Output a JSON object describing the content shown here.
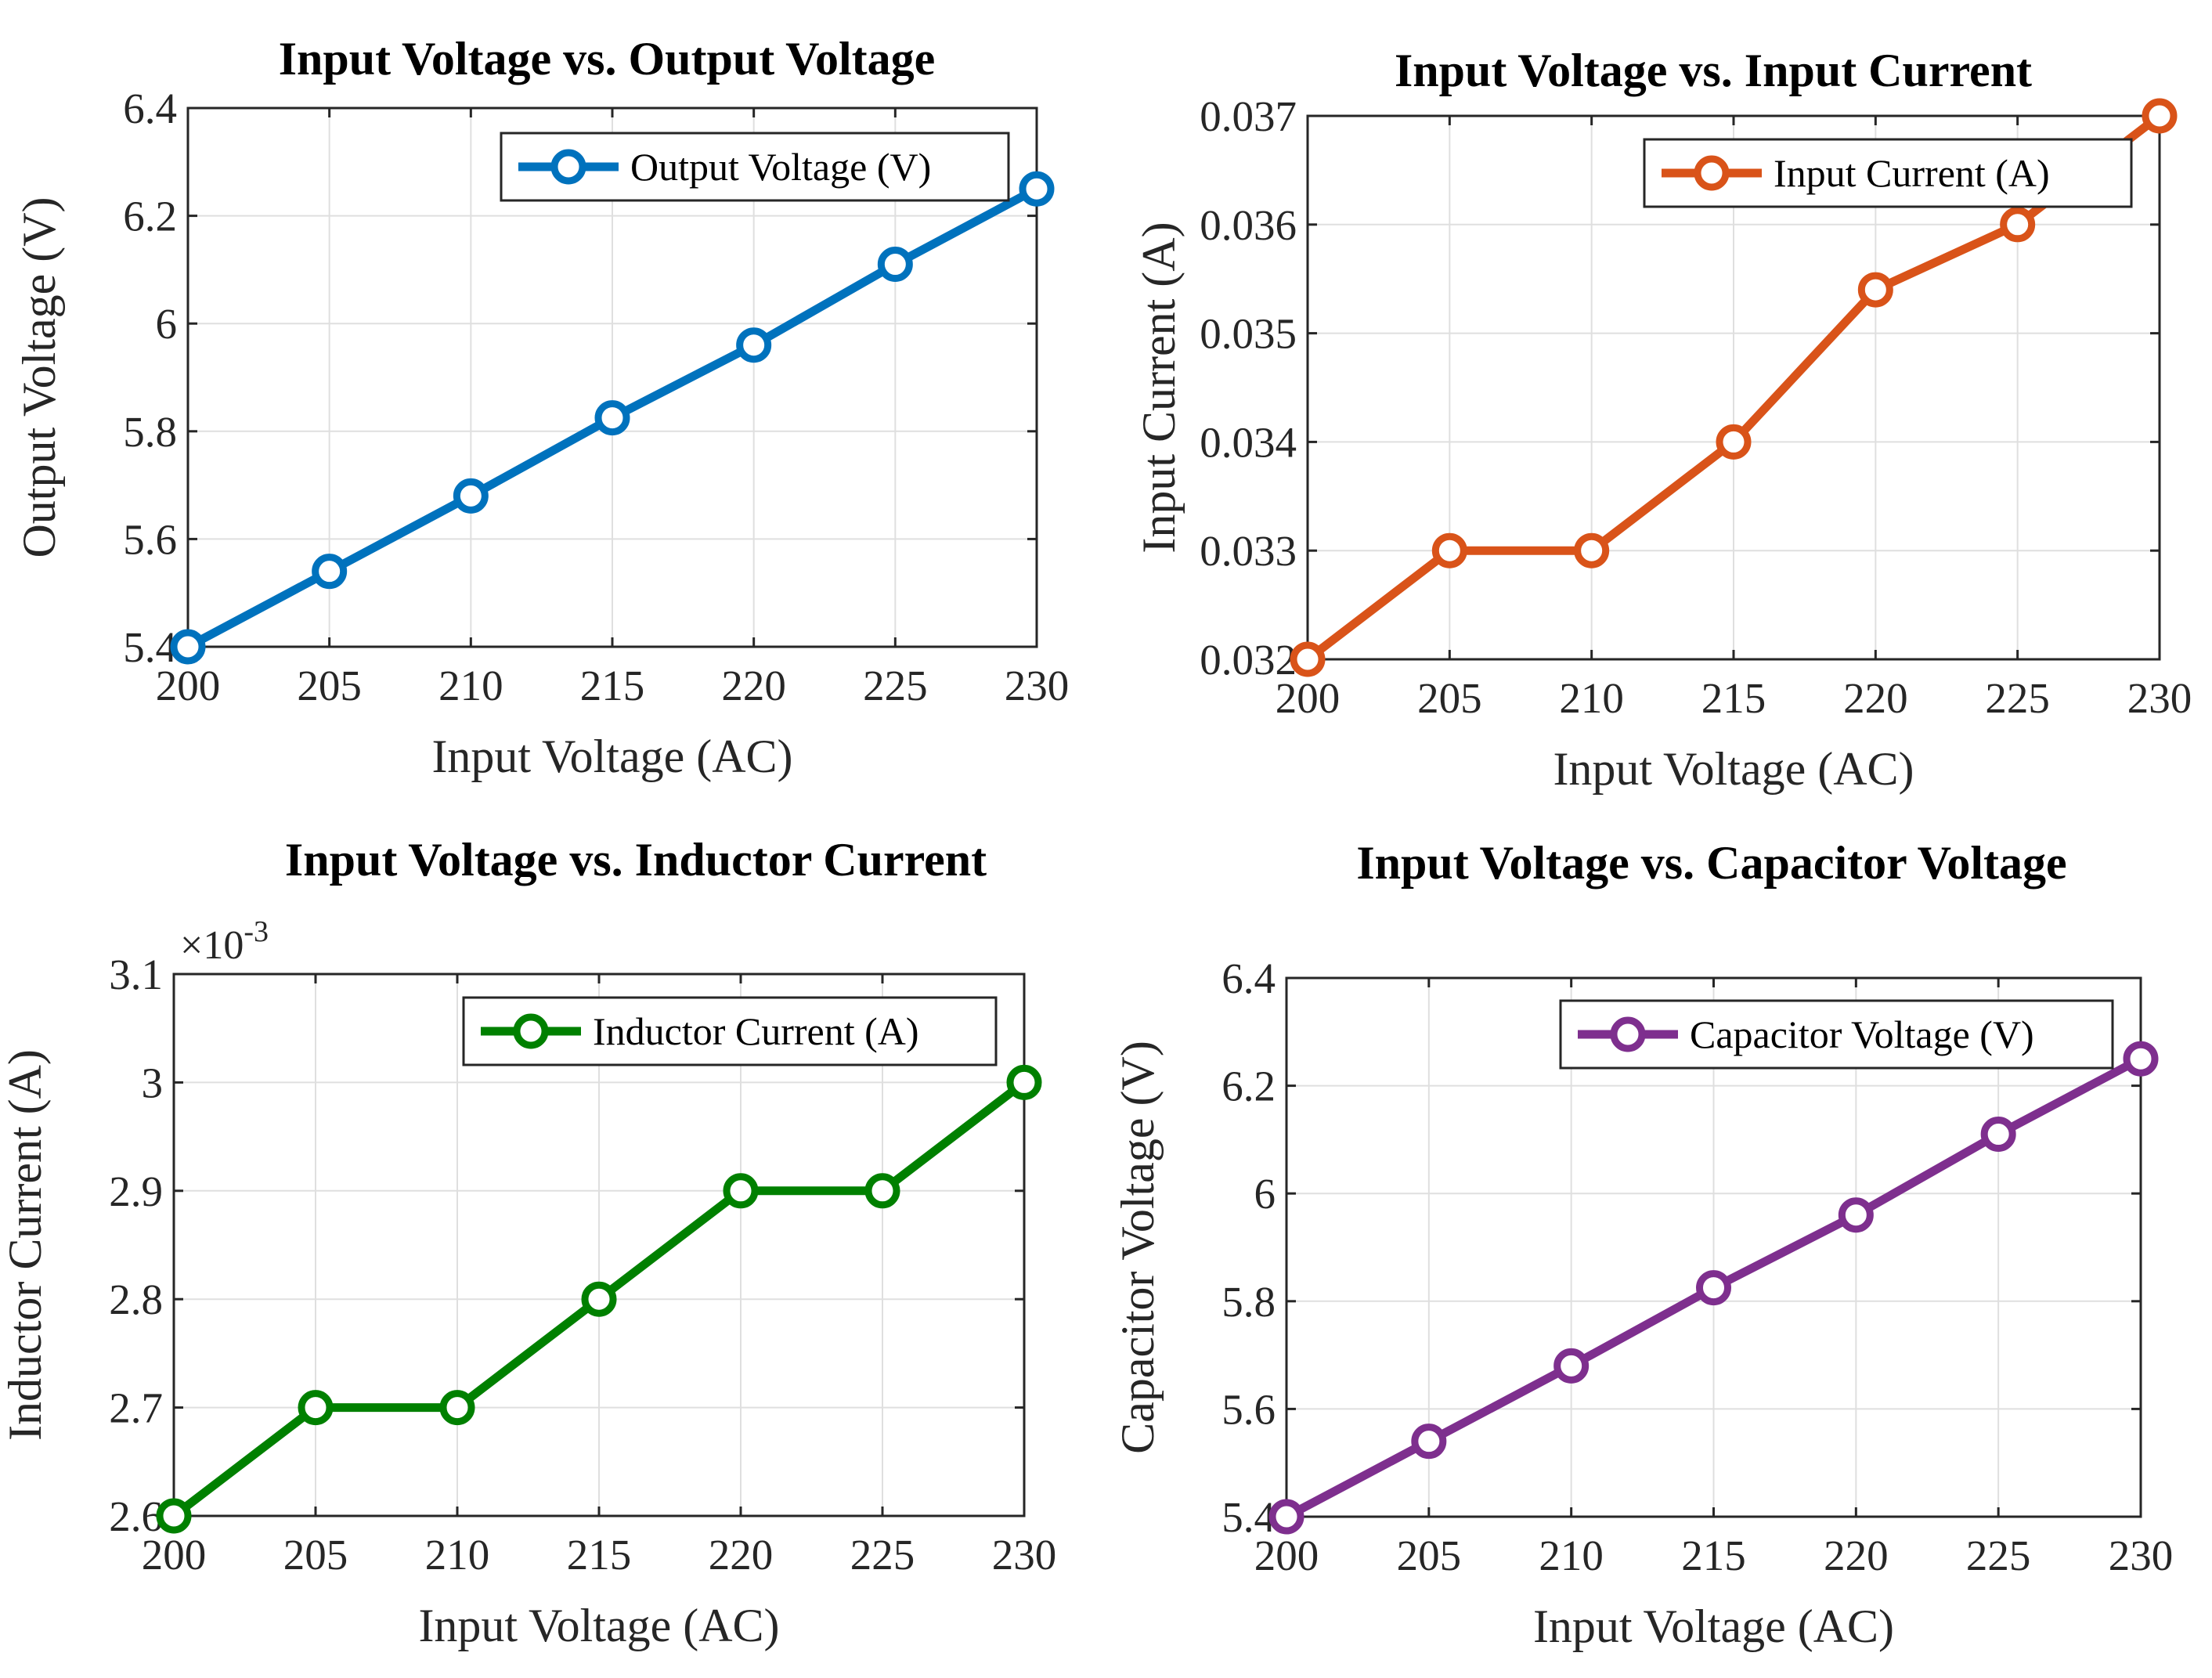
{
  "chart_data": [
    {
      "type": "line",
      "title": "Input Voltage vs. Output Voltage",
      "xlabel": "Input Voltage (AC)",
      "ylabel": "Output Voltage (V)",
      "x": [
        200,
        205,
        210,
        215,
        220,
        225,
        230
      ],
      "series": [
        {
          "name": "Output Voltage (V)",
          "values": [
            5.4,
            5.54,
            5.68,
            5.825,
            5.96,
            6.11,
            6.25
          ],
          "color": "#0072BD"
        }
      ],
      "xlim": [
        200,
        230
      ],
      "ylim": [
        5.4,
        6.4
      ],
      "xticks": [
        200,
        205,
        210,
        215,
        220,
        225,
        230
      ],
      "xtick_labels": [
        "200",
        "205",
        "210",
        "215",
        "220",
        "225",
        "230"
      ],
      "yticks": [
        5.4,
        5.6,
        5.8,
        6,
        6.2,
        6.4
      ],
      "ytick_labels": [
        "5.4",
        "5.6",
        "5.8",
        "6",
        "6.2",
        "6.4"
      ],
      "exponent_label": "",
      "grid": true,
      "legend_position": "top-right"
    },
    {
      "type": "line",
      "title": "Input Voltage vs. Input Current",
      "xlabel": "Input Voltage (AC)",
      "ylabel": "Input Current (A)",
      "x": [
        200,
        205,
        210,
        215,
        220,
        225,
        230
      ],
      "series": [
        {
          "name": "Input Current (A)",
          "values": [
            0.032,
            0.033,
            0.033,
            0.034,
            0.0354,
            0.036,
            0.037
          ],
          "color": "#D95319"
        }
      ],
      "xlim": [
        200,
        230
      ],
      "ylim": [
        0.032,
        0.037
      ],
      "xticks": [
        200,
        205,
        210,
        215,
        220,
        225,
        230
      ],
      "xtick_labels": [
        "200",
        "205",
        "210",
        "215",
        "220",
        "225",
        "230"
      ],
      "yticks": [
        0.032,
        0.033,
        0.034,
        0.035,
        0.036,
        0.037
      ],
      "ytick_labels": [
        "0.032",
        "0.033",
        "0.034",
        "0.035",
        "0.036",
        "0.037"
      ],
      "exponent_label": "",
      "grid": true,
      "legend_position": "top-right"
    },
    {
      "type": "line",
      "title": "Input Voltage vs. Inductor Current",
      "xlabel": "Input Voltage (AC)",
      "ylabel": "Inductor Current (A)",
      "x": [
        200,
        205,
        210,
        215,
        220,
        225,
        230
      ],
      "series": [
        {
          "name": "Inductor Current (A)",
          "values": [
            0.0026,
            0.0027,
            0.0027,
            0.0028,
            0.0029,
            0.0029,
            0.003
          ],
          "color": "#008000"
        }
      ],
      "xlim": [
        200,
        230
      ],
      "ylim": [
        0.0026,
        0.0031
      ],
      "xticks": [
        200,
        205,
        210,
        215,
        220,
        225,
        230
      ],
      "xtick_labels": [
        "200",
        "205",
        "210",
        "215",
        "220",
        "225",
        "230"
      ],
      "yticks": [
        0.0026,
        0.0027,
        0.0028,
        0.0029,
        0.003,
        0.0031
      ],
      "ytick_labels": [
        "2.6",
        "2.7",
        "2.8",
        "2.9",
        "3",
        "3.1"
      ],
      "exponent_label": "×10",
      "exponent_power": "-3",
      "grid": true,
      "legend_position": "top-right"
    },
    {
      "type": "line",
      "title": "Input Voltage vs. Capacitor Voltage",
      "xlabel": "Input Voltage (AC)",
      "ylabel": "Capacitor Voltage (V)",
      "x": [
        200,
        205,
        210,
        215,
        220,
        225,
        230
      ],
      "series": [
        {
          "name": "Capacitor Voltage (V)",
          "values": [
            5.4,
            5.54,
            5.68,
            5.825,
            5.96,
            6.11,
            6.25
          ],
          "color": "#7E2F8E"
        }
      ],
      "xlim": [
        200,
        230
      ],
      "ylim": [
        5.4,
        6.4
      ],
      "xticks": [
        200,
        205,
        210,
        215,
        220,
        225,
        230
      ],
      "xtick_labels": [
        "200",
        "205",
        "210",
        "215",
        "220",
        "225",
        "230"
      ],
      "yticks": [
        5.4,
        5.6,
        5.8,
        6,
        6.2,
        6.4
      ],
      "ytick_labels": [
        "5.4",
        "5.6",
        "5.8",
        "6",
        "6.2",
        "6.4"
      ],
      "exponent_label": "",
      "grid": true,
      "legend_position": "top-right"
    }
  ]
}
